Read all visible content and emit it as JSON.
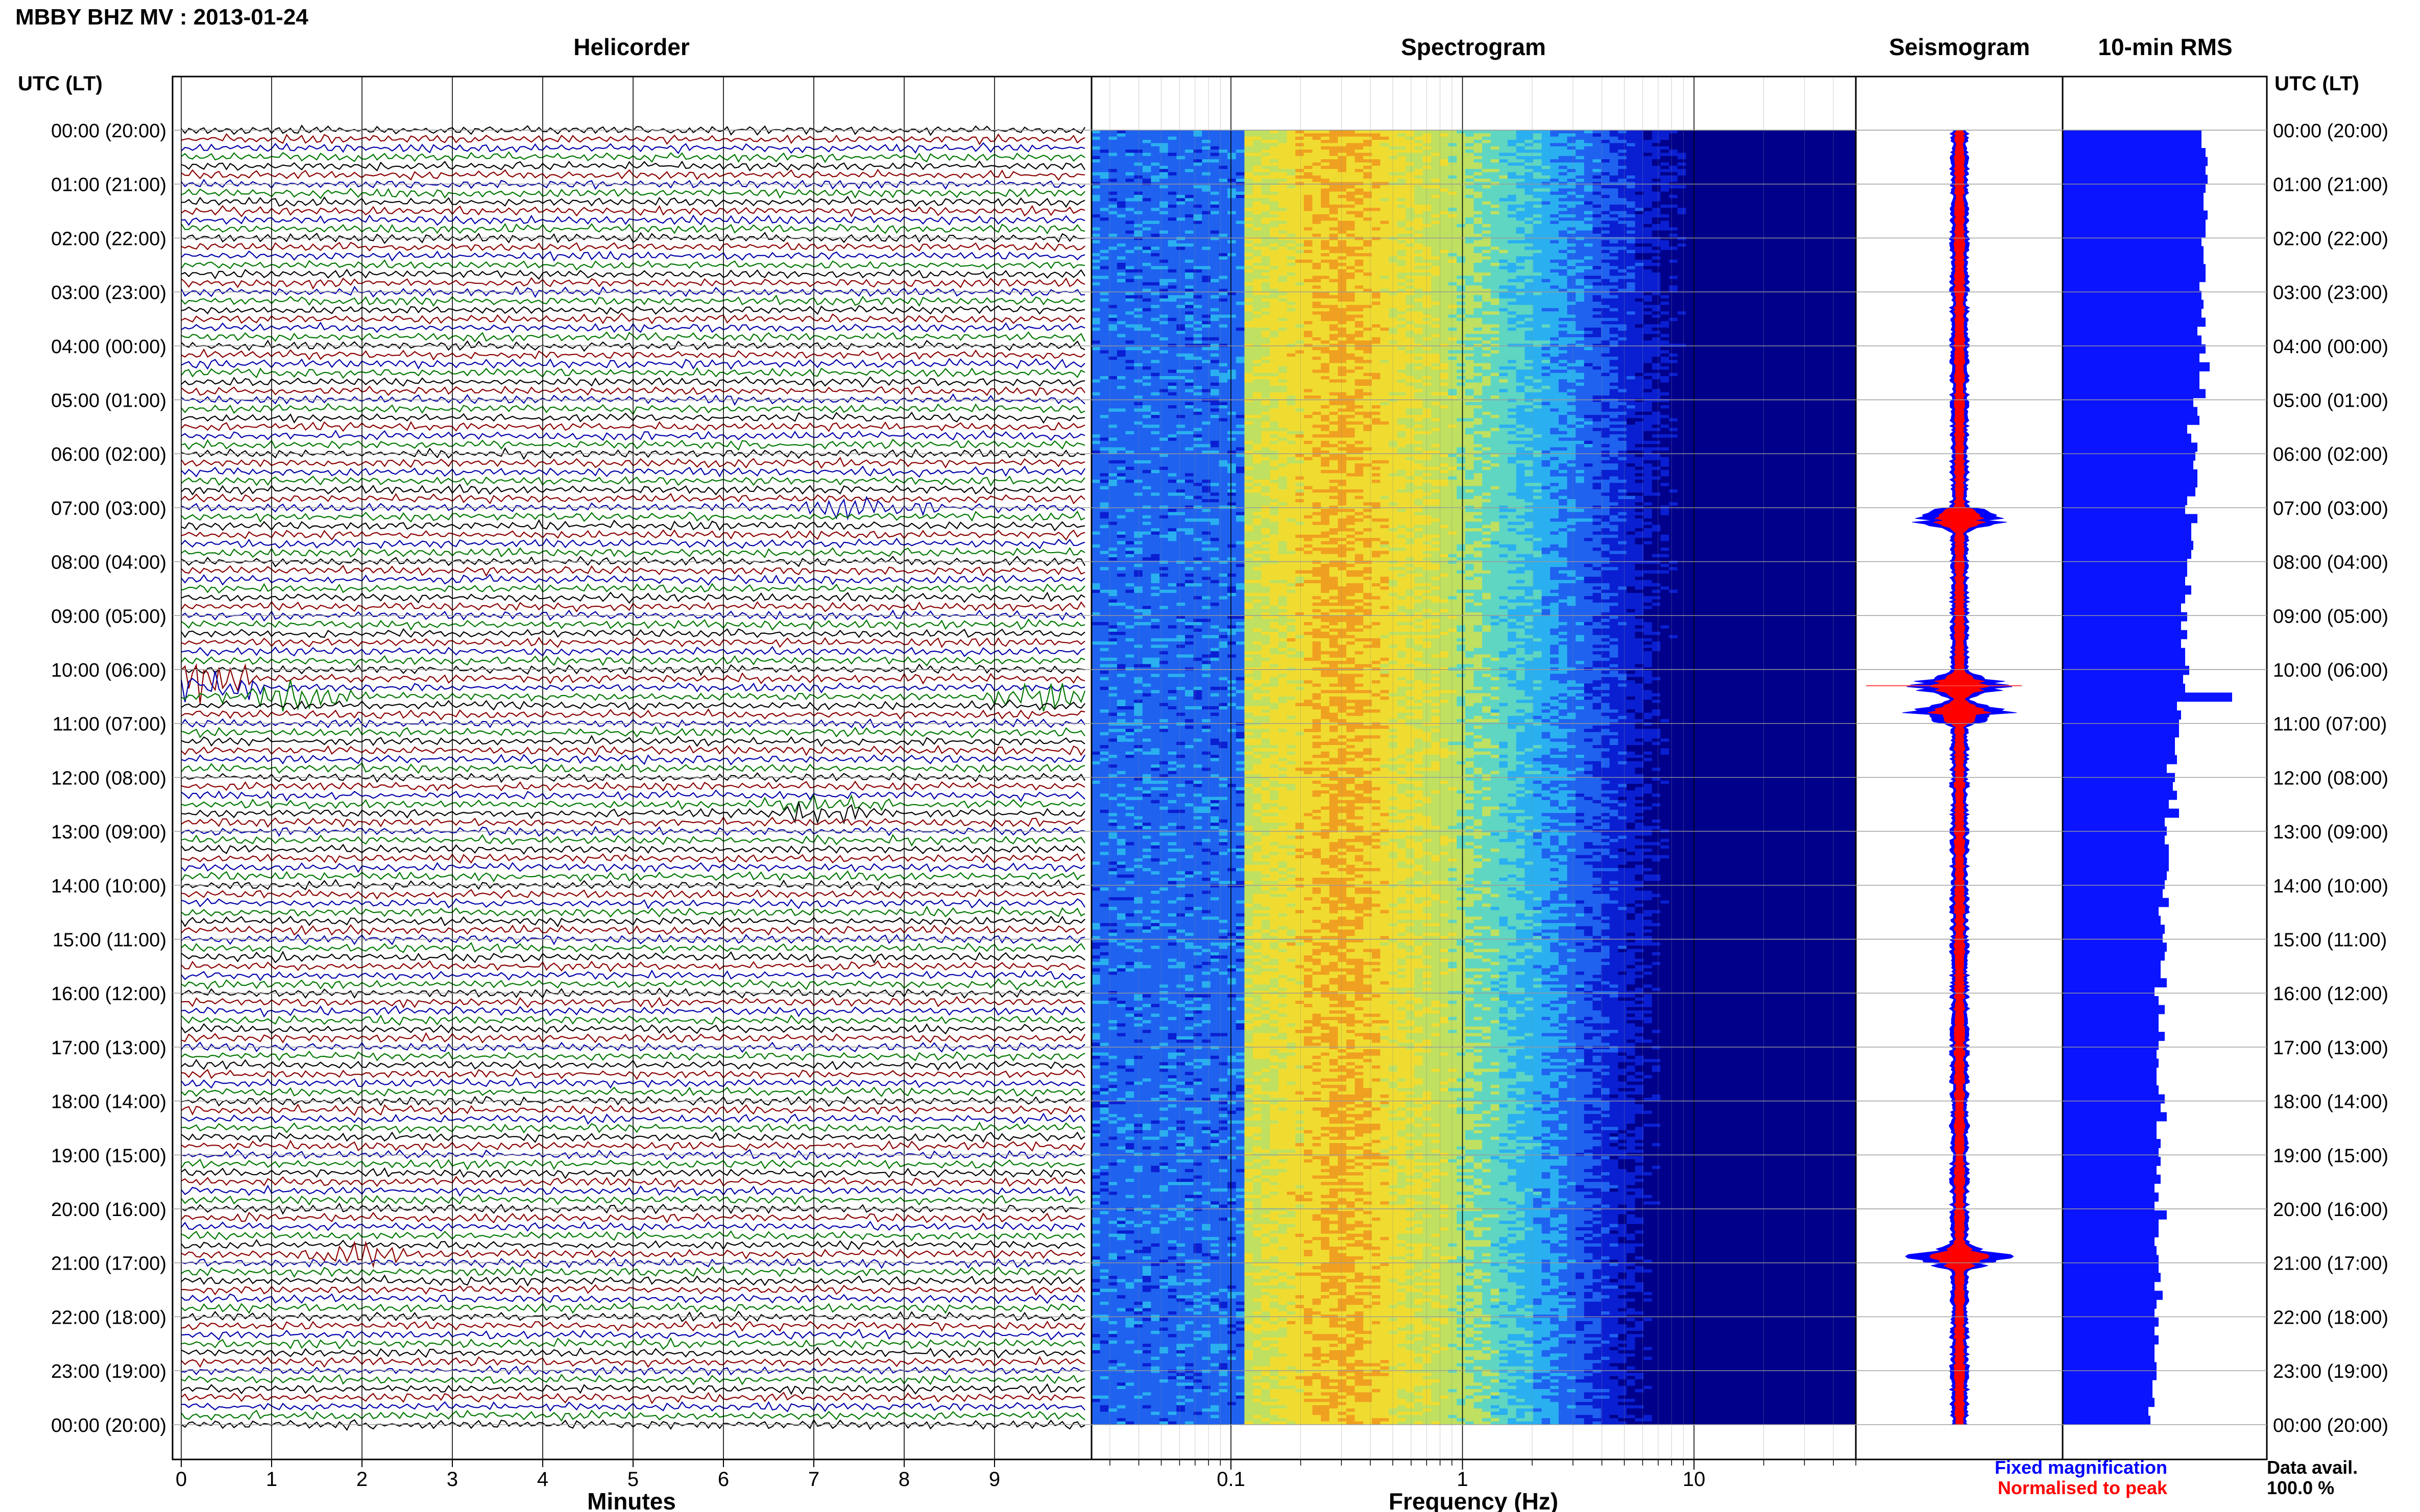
{
  "title": "MBBY BHZ MV : 2013-01-24",
  "time_axis_label": "UTC (LT)",
  "panels": {
    "helicorder": "Helicorder",
    "spectrogram": "Spectrogram",
    "seismogram": "Seismogram",
    "rms": "10-min RMS"
  },
  "legend": {
    "fixed": "Fixed magnification",
    "normalised": "Normalised to peak",
    "fixed_color": "#0000ff",
    "normalised_color": "#ff0000"
  },
  "data_availability": {
    "label": "Data avail.",
    "value": "100.0 %"
  },
  "chart_data": [
    {
      "type": "line",
      "name": "helicorder",
      "title": "Helicorder",
      "xlabel": "Minutes",
      "xticks": [
        "0",
        "1",
        "2",
        "3",
        "4",
        "5",
        "6",
        "7",
        "8",
        "9"
      ],
      "xlim": [
        0,
        10
      ],
      "row_count": 145,
      "row_colors": [
        "#000000",
        "#8b0000",
        "#0000aa",
        "#007700"
      ],
      "time_labels": [
        "00:00 (20:00)",
        "01:00 (21:00)",
        "02:00 (22:00)",
        "03:00 (23:00)",
        "04:00 (00:00)",
        "05:00 (01:00)",
        "06:00 (02:00)",
        "07:00 (03:00)",
        "08:00 (04:00)",
        "09:00 (05:00)",
        "10:00 (06:00)",
        "11:00 (07:00)",
        "12:00 (08:00)",
        "13:00 (09:00)",
        "14:00 (10:00)",
        "15:00 (11:00)",
        "16:00 (12:00)",
        "17:00 (13:00)",
        "18:00 (14:00)",
        "19:00 (15:00)",
        "20:00 (16:00)",
        "21:00 (17:00)",
        "22:00 (18:00)",
        "23:00 (19:00)",
        "00:00 (20:00)"
      ],
      "events": [
        {
          "hour": 10.25,
          "minute": 0.1,
          "amplitude": 6
        },
        {
          "hour": 10.5,
          "minute": 1.2,
          "amplitude": 3
        },
        {
          "hour": 10.5,
          "minute": 9.6,
          "amplitude": 3
        },
        {
          "hour": 7.0,
          "minute": 7.6,
          "amplitude": 2
        },
        {
          "hour": 12.6,
          "minute": 7.1,
          "amplitude": 2
        },
        {
          "hour": 20.9,
          "minute": 2.0,
          "amplitude": 2
        }
      ]
    },
    {
      "type": "heatmap",
      "name": "spectrogram",
      "title": "Spectrogram",
      "xlabel": "Frequency (Hz)",
      "xscale": "log",
      "xlim": [
        0.025,
        50
      ],
      "xticks": [
        0.1,
        1,
        10
      ],
      "xtick_labels": [
        "0.1",
        "1",
        "10"
      ],
      "colormap": [
        "#00008b",
        "#0a1fd1",
        "#1f62f0",
        "#2ab0f0",
        "#5fd6c2",
        "#bfe060",
        "#f0dc30",
        "#f0a020"
      ],
      "peak_band_hz": [
        0.18,
        0.45
      ],
      "rows": 400
    },
    {
      "type": "line",
      "name": "seismogram",
      "title": "Seismogram",
      "series": [
        {
          "name": "Fixed magnification",
          "color": "#0000ff"
        },
        {
          "name": "Normalised to peak",
          "color": "#ff0000"
        }
      ],
      "peaks_hour": [
        7.2,
        10.3,
        10.8,
        20.9
      ]
    },
    {
      "type": "bar",
      "name": "rms",
      "title": "10-min RMS",
      "orientation": "horizontal",
      "bar_count": 145,
      "values": [
        68,
        68,
        70,
        71,
        70,
        71,
        70,
        69,
        69,
        71,
        70,
        70,
        68,
        69,
        69,
        70,
        70,
        67,
        68,
        69,
        68,
        70,
        66,
        68,
        70,
        67,
        72,
        67,
        67,
        70,
        64,
        66,
        67,
        61,
        63,
        66,
        65,
        64,
        66,
        66,
        65,
        61,
        60,
        66,
        63,
        63,
        64,
        63,
        61,
        61,
        60,
        63,
        60,
        58,
        61,
        58,
        61,
        58,
        60,
        60,
        62,
        59,
        60,
        83,
        56,
        58,
        57,
        57,
        55,
        55,
        56,
        51,
        55,
        54,
        56,
        52,
        57,
        50,
        51,
        50,
        52,
        52,
        52,
        51,
        50,
        49,
        52,
        47,
        48,
        50,
        49,
        51,
        50,
        48,
        48,
        51,
        45,
        47,
        50,
        47,
        47,
        50,
        47,
        46,
        47,
        46,
        46,
        47,
        50,
        48,
        51,
        46,
        46,
        48,
        47,
        48,
        46,
        48,
        45,
        47,
        45,
        51,
        47,
        47,
        45,
        46,
        47,
        47,
        48,
        45,
        49,
        46,
        45,
        47,
        45,
        47,
        45,
        45,
        46,
        46,
        44,
        44,
        45,
        42,
        43
      ],
      "xlim": [
        0,
        100
      ]
    }
  ]
}
